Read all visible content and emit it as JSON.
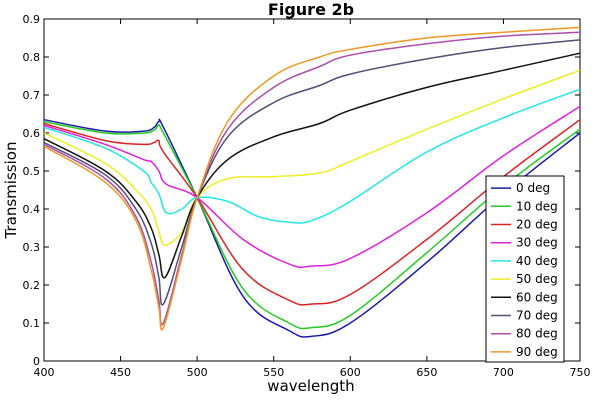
{
  "chart_data": {
    "type": "line",
    "title": "Figure 2b",
    "xlabel": "wavelength",
    "ylabel": "Transmission",
    "xlim": [
      400,
      750
    ],
    "ylim": [
      0,
      0.9
    ],
    "xticks": [
      "400",
      "450",
      "500",
      "550",
      "600",
      "650",
      "700",
      "750"
    ],
    "yticks": [
      "0",
      "0.1",
      "0.2",
      "0.3",
      "0.4",
      "0.5",
      "0.6",
      "0.7",
      "0.8",
      "0.9"
    ],
    "grid": false,
    "legend_position": "bottom-right",
    "series": [
      {
        "name": "0 deg",
        "color": "#1a1aa8",
        "x": [
          400,
          440,
          465,
          472,
          475,
          478,
          500,
          530,
          560,
          575,
          600,
          650,
          700,
          750
        ],
        "y": [
          0.635,
          0.605,
          0.605,
          0.615,
          0.63,
          0.615,
          0.43,
          0.17,
          0.08,
          0.065,
          0.1,
          0.26,
          0.44,
          0.6
        ]
      },
      {
        "name": "10 deg",
        "color": "#22cc22",
        "x": [
          400,
          440,
          465,
          472,
          475,
          478,
          500,
          530,
          560,
          575,
          600,
          650,
          700,
          750
        ],
        "y": [
          0.63,
          0.6,
          0.6,
          0.608,
          0.62,
          0.6,
          0.43,
          0.19,
          0.1,
          0.088,
          0.12,
          0.285,
          0.46,
          0.61
        ]
      },
      {
        "name": "20 deg",
        "color": "#dd2222",
        "x": [
          400,
          440,
          465,
          472,
          475,
          478,
          500,
          530,
          560,
          575,
          600,
          650,
          700,
          750
        ],
        "y": [
          0.625,
          0.58,
          0.57,
          0.575,
          0.58,
          0.55,
          0.43,
          0.24,
          0.16,
          0.15,
          0.175,
          0.32,
          0.485,
          0.635
        ]
      },
      {
        "name": "30 deg",
        "color": "#dd22dd",
        "x": [
          400,
          440,
          465,
          470,
          475,
          480,
          500,
          530,
          560,
          575,
          600,
          650,
          700,
          750
        ],
        "y": [
          0.62,
          0.57,
          0.53,
          0.525,
          0.5,
          0.465,
          0.43,
          0.32,
          0.255,
          0.25,
          0.27,
          0.39,
          0.54,
          0.67
        ]
      },
      {
        "name": "40 deg",
        "color": "#22e5e5",
        "x": [
          400,
          440,
          465,
          470,
          475,
          480,
          490,
          500,
          520,
          540,
          560,
          575,
          600,
          650,
          700,
          750
        ],
        "y": [
          0.615,
          0.56,
          0.5,
          0.47,
          0.44,
          0.39,
          0.4,
          0.43,
          0.42,
          0.38,
          0.365,
          0.37,
          0.42,
          0.55,
          0.64,
          0.715
        ]
      },
      {
        "name": "50 deg",
        "color": "#eeee22",
        "x": [
          400,
          440,
          460,
          470,
          475,
          479,
          490,
          500,
          520,
          550,
          580,
          600,
          650,
          700,
          750
        ],
        "y": [
          0.6,
          0.52,
          0.45,
          0.4,
          0.34,
          0.305,
          0.34,
          0.43,
          0.48,
          0.485,
          0.495,
          0.525,
          0.61,
          0.69,
          0.765
        ]
      },
      {
        "name": "60 deg",
        "color": "#111111",
        "x": [
          400,
          440,
          460,
          470,
          475,
          479,
          490,
          500,
          520,
          550,
          580,
          600,
          650,
          700,
          750
        ],
        "y": [
          0.585,
          0.5,
          0.42,
          0.35,
          0.28,
          0.22,
          0.33,
          0.43,
          0.53,
          0.59,
          0.625,
          0.66,
          0.72,
          0.765,
          0.81
        ]
      },
      {
        "name": "70 deg",
        "color": "#505078",
        "x": [
          400,
          440,
          460,
          470,
          475,
          478,
          490,
          500,
          520,
          550,
          580,
          600,
          650,
          700,
          750
        ],
        "y": [
          0.575,
          0.49,
          0.4,
          0.31,
          0.22,
          0.15,
          0.3,
          0.43,
          0.59,
          0.68,
          0.725,
          0.755,
          0.795,
          0.825,
          0.845
        ]
      },
      {
        "name": "80 deg",
        "color": "#aa4faa",
        "x": [
          400,
          440,
          460,
          470,
          475,
          478,
          490,
          500,
          520,
          550,
          580,
          600,
          650,
          700,
          750
        ],
        "y": [
          0.57,
          0.48,
          0.38,
          0.26,
          0.16,
          0.1,
          0.28,
          0.43,
          0.61,
          0.72,
          0.775,
          0.805,
          0.835,
          0.855,
          0.865
        ]
      },
      {
        "name": "90 deg",
        "color": "#ee9922",
        "x": [
          400,
          440,
          460,
          470,
          475,
          478,
          490,
          500,
          520,
          550,
          580,
          600,
          650,
          700,
          750
        ],
        "y": [
          0.565,
          0.47,
          0.37,
          0.24,
          0.14,
          0.088,
          0.27,
          0.43,
          0.63,
          0.75,
          0.8,
          0.82,
          0.85,
          0.865,
          0.878
        ]
      }
    ]
  }
}
